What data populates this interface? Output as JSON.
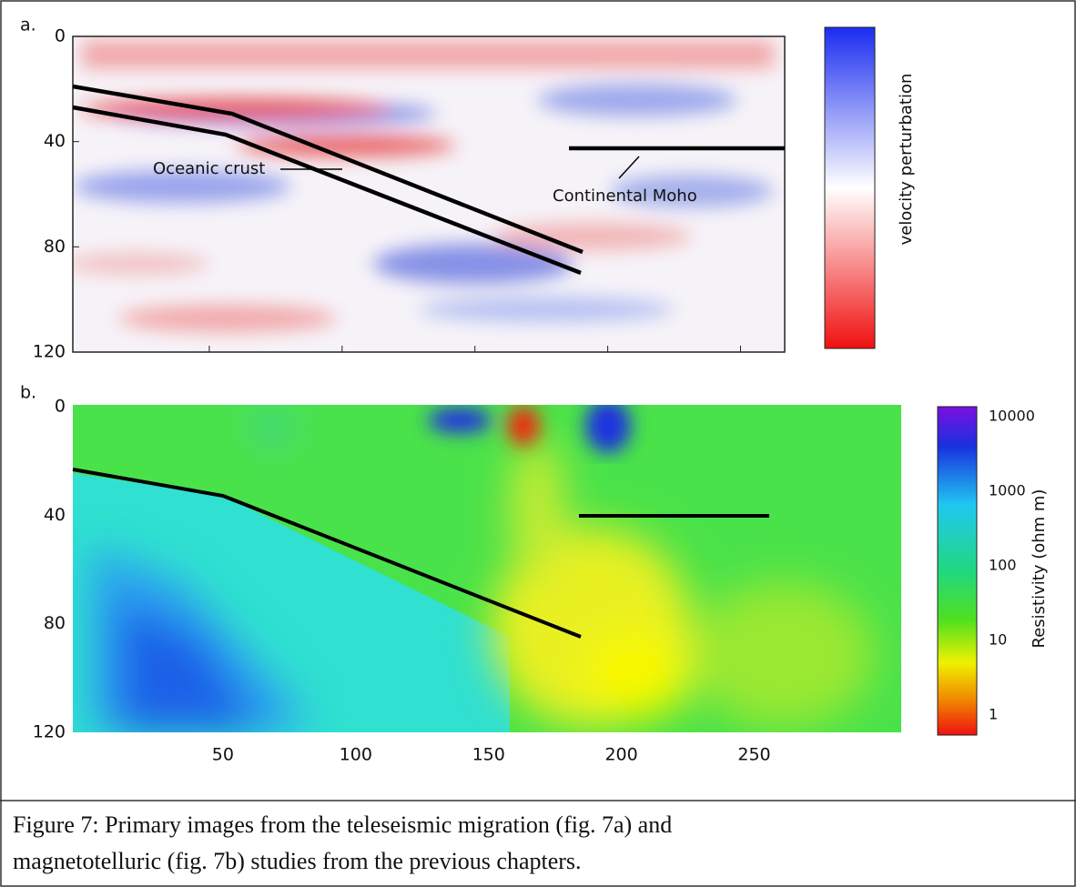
{
  "figure": {
    "panel_a": {
      "label": "a.",
      "y_ticks": [
        0,
        40,
        80,
        120
      ],
      "annotations": [
        "Oceanic crust",
        "Continental Moho"
      ],
      "colorbar_label": "velocity perturbation"
    },
    "panel_b": {
      "label": "b.",
      "y_ticks": [
        0,
        40,
        80,
        120
      ],
      "x_ticks": [
        50,
        100,
        150,
        200,
        250
      ],
      "colorbar_ticks": [
        10000,
        1000,
        100,
        10,
        1
      ],
      "colorbar_label": "Resistivity (ohm m)"
    },
    "caption": [
      "Figure 7:  Primary images from the teleseismic migration (fig. 7a) and",
      "magnetotelluric (fig. 7b) studies from the previous chapters."
    ]
  }
}
